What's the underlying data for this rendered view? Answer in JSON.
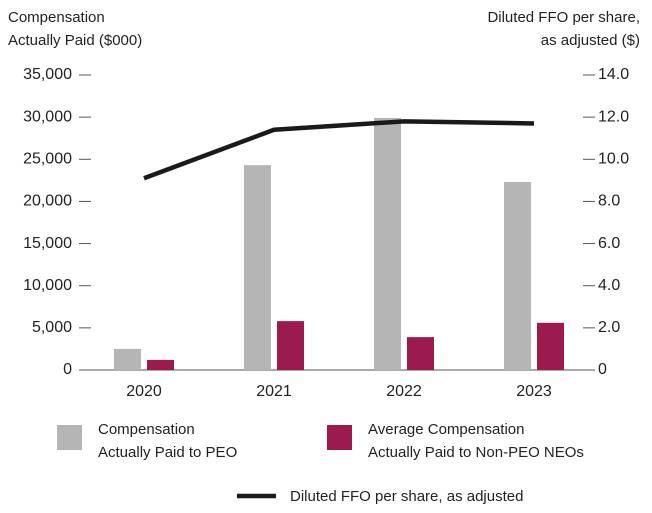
{
  "chart_data": {
    "type": "bar",
    "y_label": "Compensation\nActually Paid ($000)",
    "y2_label": "Diluted FFO per share,\nas adjusted ($)",
    "categories": [
      "2020",
      "2021",
      "2022",
      "2023"
    ],
    "series": [
      {
        "name": "Compensation\nActually Paid to PEO",
        "color": "#b5b5b5",
        "type": "bar",
        "values": [
          2500,
          24300,
          29900,
          22300
        ]
      },
      {
        "name": "Average Compensation\nActually Paid to Non-PEO NEOs",
        "color": "#9b1b4f",
        "type": "bar",
        "values": [
          1200,
          5800,
          3900,
          5600
        ]
      },
      {
        "name": "Diluted FFO per share, as adjusted",
        "color": "#1a1a1a",
        "type": "line",
        "axis": "y2",
        "values": [
          9.1,
          11.4,
          11.8,
          11.7
        ]
      }
    ],
    "ylim": [
      0,
      35000
    ],
    "yticks": [
      0,
      {
        "value": 5000,
        "label": "5,000"
      },
      {
        "value": 10000,
        "label": "10,000"
      },
      {
        "value": 15000,
        "label": "15,000"
      },
      {
        "value": 20000,
        "label": "20,000"
      },
      {
        "value": 25000,
        "label": "25,000"
      },
      {
        "value": 30000,
        "label": "30,000"
      },
      {
        "value": 35000,
        "label": "35,000"
      }
    ],
    "y2lim": [
      0,
      14
    ],
    "y2ticks": [
      0,
      {
        "value": 2,
        "label": "2.0"
      },
      {
        "value": 4,
        "label": "4.0"
      },
      {
        "value": 6,
        "label": "6.0"
      },
      {
        "value": 8,
        "label": "8.0"
      },
      {
        "value": 10,
        "label": "10.0"
      },
      {
        "value": 12,
        "label": "12.0"
      },
      {
        "value": 14,
        "label": "14.0"
      }
    ],
    "grid": false
  }
}
